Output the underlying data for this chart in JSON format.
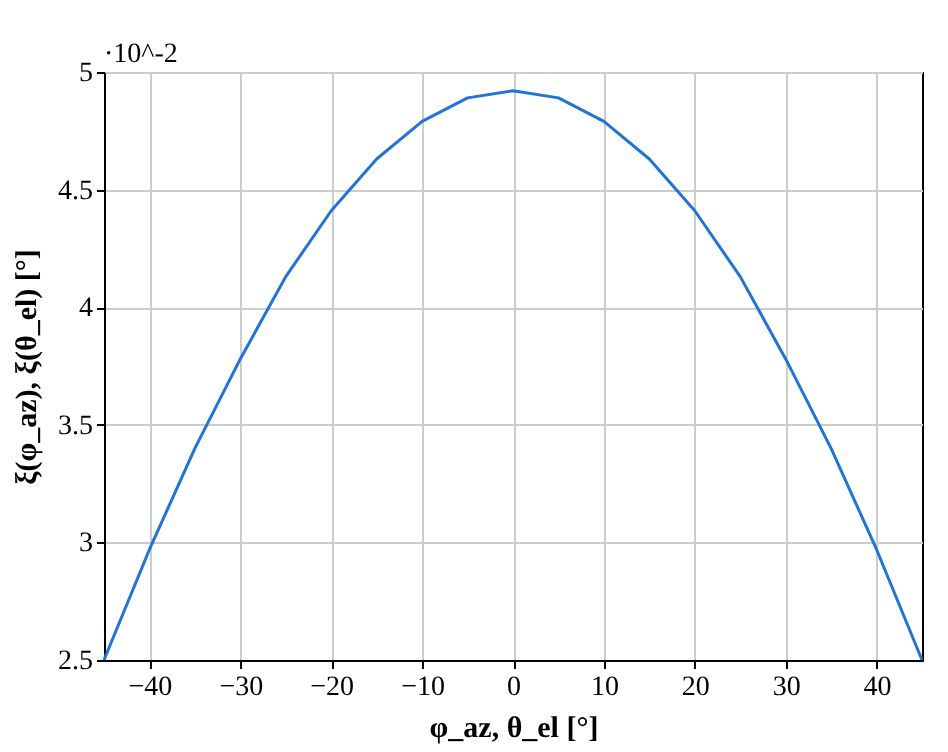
{
  "chart_data": {
    "type": "line",
    "xlabel": "φ_az, θ_el [°]",
    "ylabel": "ξ(φ_az), ξ(θ_el) [°]",
    "annotations": [
      "·10^-2"
    ],
    "x": [
      -45,
      -40,
      -35,
      -30,
      -25,
      -20,
      -15,
      -10,
      -5,
      0,
      5,
      10,
      15,
      20,
      25,
      30,
      35,
      40,
      45
    ],
    "series": [
      {
        "color": "#2173d6",
        "values": [
          2.5,
          2.97,
          3.4,
          3.78,
          4.13,
          4.41,
          4.63,
          4.79,
          4.89,
          4.92,
          4.89,
          4.79,
          4.63,
          4.41,
          4.13,
          3.78,
          3.4,
          2.97,
          2.5
        ]
      }
    ],
    "xlim": [
      -45,
      45
    ],
    "xticks": [
      -40,
      -30,
      -20,
      -10,
      0,
      10,
      20,
      30,
      40
    ],
    "ylim": [
      2.5,
      5
    ],
    "yticks": [
      2.5,
      3,
      3.5,
      4,
      4.5,
      5
    ],
    "grid": true,
    "marker": "none",
    "line_style": "solid"
  }
}
